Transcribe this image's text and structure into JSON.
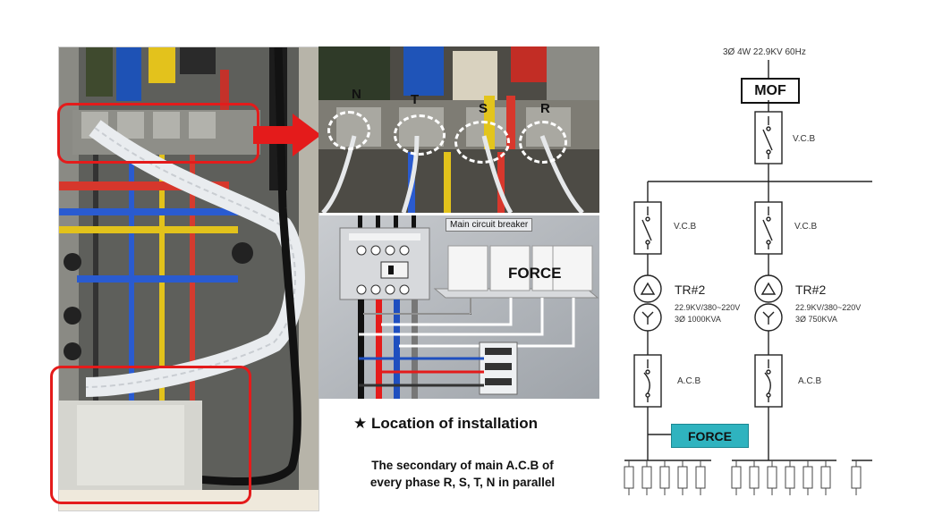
{
  "phases": [
    "N",
    "T",
    "S",
    "R"
  ],
  "illustration": {
    "breaker_label": "Main circuit breaker",
    "device_label": "FORCE"
  },
  "location": {
    "star": "★",
    "title": "Location of installation",
    "desc_line1": "The secondary of main A.C.B of",
    "desc_line2": "every phase R, S, T, N in parallel"
  },
  "sld": {
    "supply": "3Ø 4W  22.9KV  60Hz",
    "mof": "MOF",
    "vcb_main": "V.C.B",
    "branches": [
      {
        "vcb": "V.C.B",
        "tr": "TR#2",
        "spec1": "22.9KV/380~220V",
        "spec2": "3Ø 1000KVA",
        "acb": "A.C.B"
      },
      {
        "vcb": "V.C.B",
        "tr": "TR#2",
        "spec1": "22.9KV/380~220V",
        "spec2": "3Ø 750KVA",
        "acb": "A.C.B"
      }
    ],
    "force": "FORCE"
  },
  "colors": {
    "red": "#e41b1b",
    "force_teal": "#2fb3bf",
    "phase_blue": "#1f4fbf",
    "phase_yellow": "#e8c21a"
  }
}
